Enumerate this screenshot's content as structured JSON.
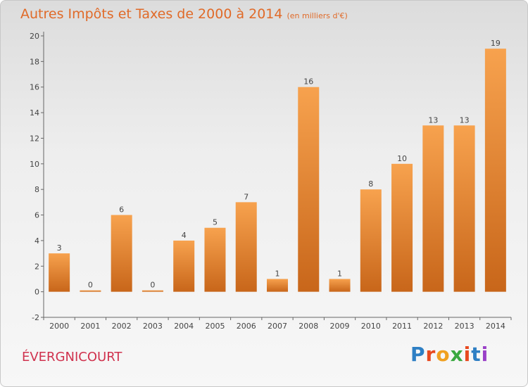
{
  "header": {
    "title": "Autres Impôts et Taxes de 2000 à 2014",
    "unit": "(en milliers d'€)"
  },
  "footer": {
    "place": "ÉVERGNICOURT",
    "logo": [
      "P",
      "r",
      "o",
      "x",
      "i",
      "t",
      "i"
    ]
  },
  "chart_data": {
    "type": "bar",
    "title": "Autres Impôts et Taxes de 2000 à 2014",
    "subtitle": "(en milliers d'€)",
    "xlabel": "",
    "ylabel": "",
    "categories": [
      "2000",
      "2001",
      "2002",
      "2003",
      "2004",
      "2005",
      "2006",
      "2007",
      "2008",
      "2009",
      "2010",
      "2011",
      "2012",
      "2013",
      "2014"
    ],
    "values": [
      3,
      0,
      6,
      0,
      4,
      5,
      7,
      1,
      16,
      1,
      8,
      10,
      13,
      13,
      19
    ],
    "data_labels": [
      "3",
      "0",
      "6",
      "0",
      "4",
      "5",
      "7",
      "1",
      "16",
      "1",
      "8",
      "10",
      "13",
      "13",
      "19"
    ],
    "ylim": [
      -2,
      20
    ],
    "yticks": [
      "-2",
      "0",
      "2",
      "4",
      "6",
      "8",
      "10",
      "12",
      "14",
      "16",
      "18",
      "20"
    ],
    "grid": false,
    "legend": "none",
    "colors": {
      "bar_top": "#f7a24e",
      "bar_bottom": "#c8661a",
      "axis": "#666666"
    }
  }
}
